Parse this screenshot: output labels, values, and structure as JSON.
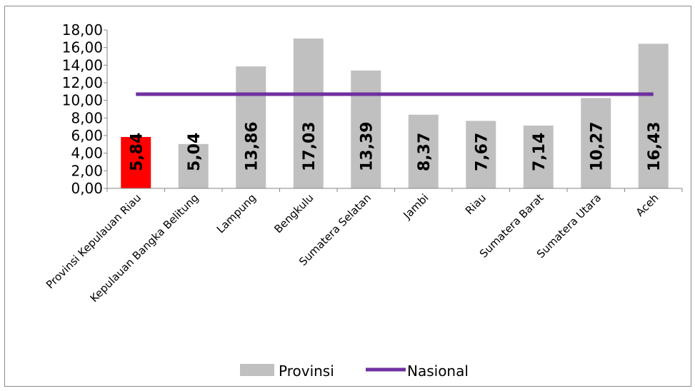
{
  "chart_data": {
    "type": "bar",
    "categories": [
      "Provinsi Kepulauan Riau",
      "Kepulauan Bangka Belitung",
      "Lampung",
      "Bengkulu",
      "Sumatera Selatan",
      "Jambi",
      "Riau",
      "Sumatera Barat",
      "Sumatera Utara",
      "Aceh"
    ],
    "series": [
      {
        "name": "Provinsi",
        "type": "bar",
        "values": [
          5.84,
          5.04,
          13.86,
          17.03,
          13.39,
          8.37,
          7.67,
          7.14,
          10.27,
          16.43
        ],
        "labels": [
          "5,84",
          "5,04",
          "13,86",
          "17,03",
          "13,39",
          "8,37",
          "7,67",
          "7,14",
          "10,27",
          "16,43"
        ],
        "color": "#c0c0c0",
        "highlight_index": 0,
        "highlight_color": "#ff0000"
      },
      {
        "name": "Nasional",
        "type": "line",
        "value": 10.7,
        "color": "#7030a0"
      }
    ],
    "yticks": [
      "0,00",
      "2,00",
      "4,00",
      "6,00",
      "8,00",
      "10,00",
      "12,00",
      "14,00",
      "16,00",
      "18,00"
    ],
    "ylim": [
      0,
      18
    ],
    "grid": false,
    "legend_position": "bottom",
    "title": "",
    "xlabel": "",
    "ylabel": ""
  }
}
